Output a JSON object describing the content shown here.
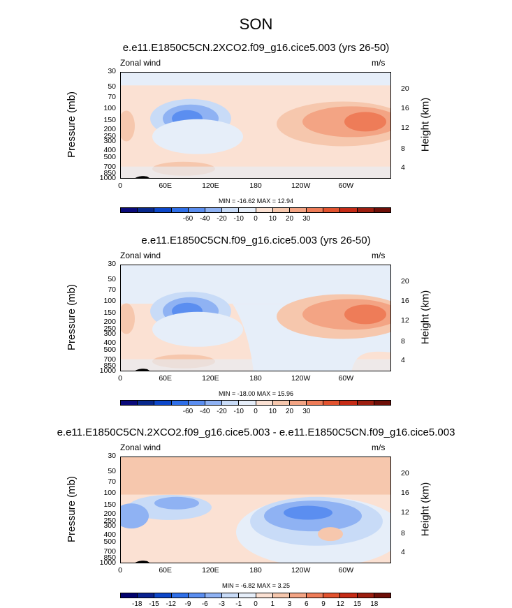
{
  "figure_title": "SON",
  "chart_data": [
    {
      "type": "contour",
      "title": "e.e11.E1850C5CN.2XCO2.f09_g16.cice5.003 (yrs 26-50)",
      "left_label": "Zonal wind",
      "right_label": "m/s",
      "ylabel": "Pressure (mb)",
      "y2label": "Height (km)",
      "yticks": [
        "30",
        "50",
        "70",
        "100",
        "150",
        "200",
        "250",
        "300",
        "400",
        "500",
        "700",
        "850",
        "1000"
      ],
      "y2ticks": [
        "20",
        "16",
        "12",
        "8",
        "4"
      ],
      "xticks": [
        "0",
        "60E",
        "120E",
        "180",
        "120W",
        "60W"
      ],
      "min_max": "MIN = -16.62   MAX =  12.94",
      "colorbar_ticks": [
        "-60",
        "-40",
        "-20",
        "-10",
        "0",
        "10",
        "20",
        "30"
      ],
      "range": [
        -16.62,
        12.94
      ]
    },
    {
      "type": "contour",
      "title": "e.e11.E1850C5CN.f09_g16.cice5.003 (yrs 26-50)",
      "left_label": "Zonal wind",
      "right_label": "m/s",
      "ylabel": "Pressure (mb)",
      "y2label": "Height (km)",
      "yticks": [
        "30",
        "50",
        "70",
        "100",
        "150",
        "200",
        "250",
        "300",
        "400",
        "500",
        "700",
        "850",
        "1000"
      ],
      "y2ticks": [
        "20",
        "16",
        "12",
        "8",
        "4"
      ],
      "xticks": [
        "0",
        "60E",
        "120E",
        "180",
        "120W",
        "60W"
      ],
      "min_max": "MIN = -18.00   MAX =  15.96",
      "colorbar_ticks": [
        "-60",
        "-40",
        "-20",
        "-10",
        "0",
        "10",
        "20",
        "30"
      ],
      "range": [
        -18.0,
        15.96
      ]
    },
    {
      "type": "contour",
      "title": "e.e11.E1850C5CN.2XCO2.f09_g16.cice5.003 - e.e11.E1850C5CN.f09_g16.cice5.003",
      "left_label": "Zonal wind",
      "right_label": "m/s",
      "ylabel": "Pressure (mb)",
      "y2label": "Height (km)",
      "yticks": [
        "30",
        "50",
        "70",
        "100",
        "150",
        "200",
        "250",
        "300",
        "400",
        "500",
        "700",
        "850",
        "1000"
      ],
      "y2ticks": [
        "20",
        "16",
        "12",
        "8",
        "4"
      ],
      "xticks": [
        "0",
        "60E",
        "120E",
        "180",
        "120W",
        "60W"
      ],
      "min_max": "MIN =  -6.82   MAX =   3.25",
      "colorbar_ticks": [
        "-18",
        "-15",
        "-12",
        "-9",
        "-6",
        "-3",
        "-1",
        "0",
        "1",
        "3",
        "6",
        "9",
        "12",
        "15",
        "18"
      ],
      "range": [
        -6.82,
        3.25
      ]
    }
  ],
  "colors": {
    "cbar_main": [
      "#0a0a7a",
      "#08288c",
      "#0d47c9",
      "#2f6fe8",
      "#5b8ef0",
      "#8fb2f3",
      "#c8dbf7",
      "#e6eef9",
      "#fbe1d3",
      "#f6c7ad",
      "#f3a484",
      "#ee7c58",
      "#e2532f",
      "#c52b16",
      "#9c1e10",
      "#6e0f08"
    ],
    "cbar_diff": [
      "#02026e",
      "#0a2290",
      "#0d47c9",
      "#2f6fe8",
      "#5b8ef0",
      "#8fb2f3",
      "#c8dbf7",
      "#e6eef9",
      "#fbe1d3",
      "#f6c7ad",
      "#f3a484",
      "#ee7c58",
      "#e2532f",
      "#c52b16",
      "#9c1e10",
      "#6e0f08"
    ]
  }
}
